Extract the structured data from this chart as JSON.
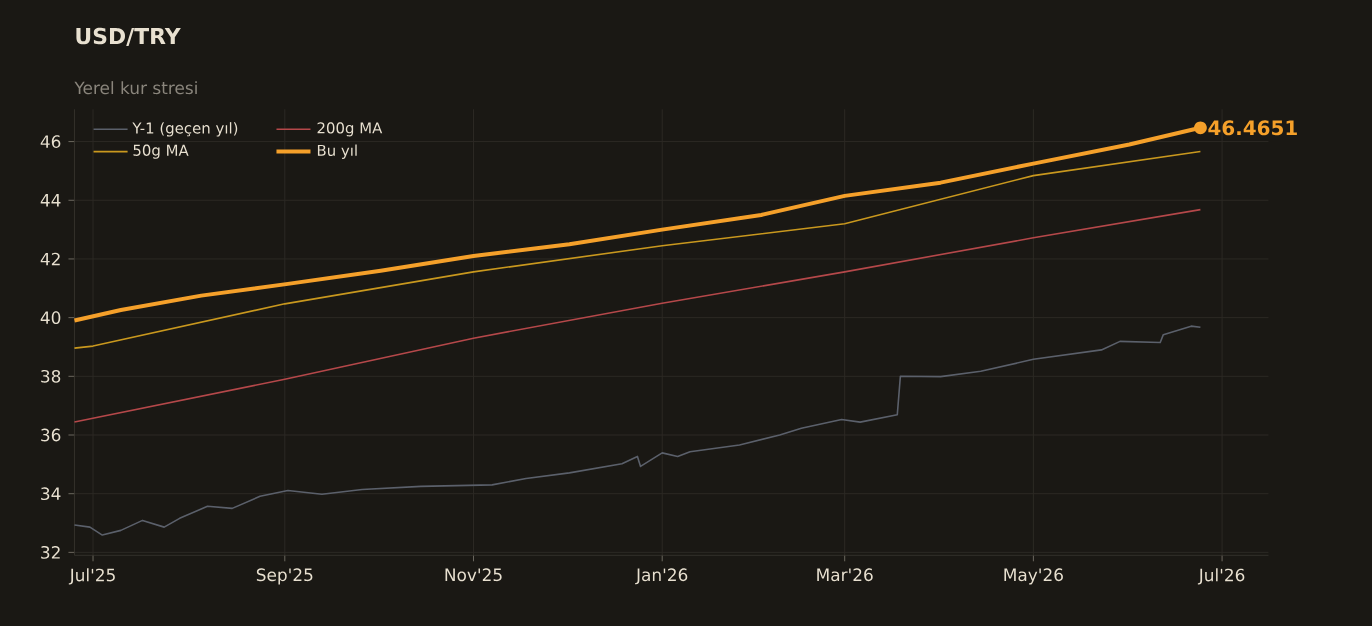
{
  "chart_data": {
    "type": "line",
    "title": "USD/TRY",
    "subtitle": "Yerel kur stresi",
    "xlim": [
      "2025-06-25",
      "2026-07-16"
    ],
    "ylim": [
      31.9,
      47.1
    ],
    "xticks": [
      {
        "value": "2025-07-01",
        "label": "Jul'25"
      },
      {
        "value": "2025-09-01",
        "label": "Sep'25"
      },
      {
        "value": "2025-11-01",
        "label": "Nov'25"
      },
      {
        "value": "2026-01-01",
        "label": "Jan'26"
      },
      {
        "value": "2026-03-01",
        "label": "Mar'26"
      },
      {
        "value": "2026-05-01",
        "label": "May'26"
      },
      {
        "value": "2026-07-01",
        "label": "Jul'26"
      }
    ],
    "yticks": [
      32,
      34,
      36,
      38,
      40,
      42,
      44,
      46
    ],
    "grid": true,
    "legend": "top left",
    "marker": "none",
    "line_style": "solid",
    "series": [
      {
        "name": "Y-1 (geçen yıl)",
        "color": "#5b606b",
        "x": [
          "2025-06-25",
          "2025-06-30",
          "2025-07-04",
          "2025-07-10",
          "2025-07-17",
          "2025-07-24",
          "2025-07-29",
          "2025-08-07",
          "2025-08-15",
          "2025-08-24",
          "2025-09-02",
          "2025-09-13",
          "2025-09-26",
          "2025-10-15",
          "2025-11-07",
          "2025-11-18",
          "2025-12-02",
          "2025-12-19",
          "2025-12-24",
          "2025-12-25",
          "2026-01-01",
          "2026-01-06",
          "2026-01-10",
          "2026-01-26",
          "2026-02-08",
          "2026-02-15",
          "2026-02-28",
          "2026-03-06",
          "2026-03-18",
          "2026-03-19",
          "2026-04-01",
          "2026-04-14",
          "2026-05-01",
          "2026-05-23",
          "2026-05-29",
          "2026-06-11",
          "2026-06-12",
          "2026-06-21",
          "2026-06-24"
        ],
        "values": [
          32.93,
          32.86,
          32.59,
          32.75,
          33.09,
          32.86,
          33.16,
          33.57,
          33.5,
          33.91,
          34.11,
          33.98,
          34.14,
          34.25,
          34.3,
          34.52,
          34.71,
          35.02,
          35.27,
          34.93,
          35.39,
          35.27,
          35.43,
          35.66,
          36.0,
          36.23,
          36.53,
          36.44,
          36.69,
          38.0,
          37.99,
          38.17,
          38.58,
          38.9,
          39.19,
          39.15,
          39.42,
          39.71,
          39.67
        ]
      },
      {
        "name": "200g MA",
        "color": "#b5484a",
        "x": [
          "2025-06-25",
          "2025-09-01",
          "2025-11-01",
          "2026-01-01",
          "2026-03-01",
          "2026-05-01",
          "2026-06-24"
        ],
        "values": [
          36.44,
          37.9,
          39.3,
          40.49,
          41.56,
          42.72,
          43.68
        ]
      },
      {
        "name": "50g MA",
        "color": "#c9981e",
        "x": [
          "2025-06-25",
          "2025-07-01",
          "2025-09-01",
          "2025-11-01",
          "2026-01-01",
          "2026-03-01",
          "2026-05-01",
          "2026-06-24"
        ],
        "values": [
          38.96,
          39.03,
          40.47,
          41.56,
          42.45,
          43.2,
          44.84,
          45.66
        ]
      },
      {
        "name": "Bu yıl",
        "color": "#f5a02a",
        "x": [
          "2025-06-25",
          "2025-07-10",
          "2025-08-05",
          "2025-09-02",
          "2025-10-02",
          "2025-11-01",
          "2025-12-02",
          "2026-01-01",
          "2026-02-02",
          "2026-03-01",
          "2026-04-01",
          "2026-05-01",
          "2026-06-01",
          "2026-06-24"
        ],
        "values": [
          39.9,
          40.26,
          40.75,
          41.15,
          41.6,
          42.1,
          42.5,
          43.0,
          43.5,
          44.15,
          44.6,
          45.25,
          45.9,
          46.47
        ]
      }
    ],
    "annotations": [
      {
        "text": "46.4651",
        "x": "2026-06-24",
        "y": 46.47
      }
    ]
  }
}
